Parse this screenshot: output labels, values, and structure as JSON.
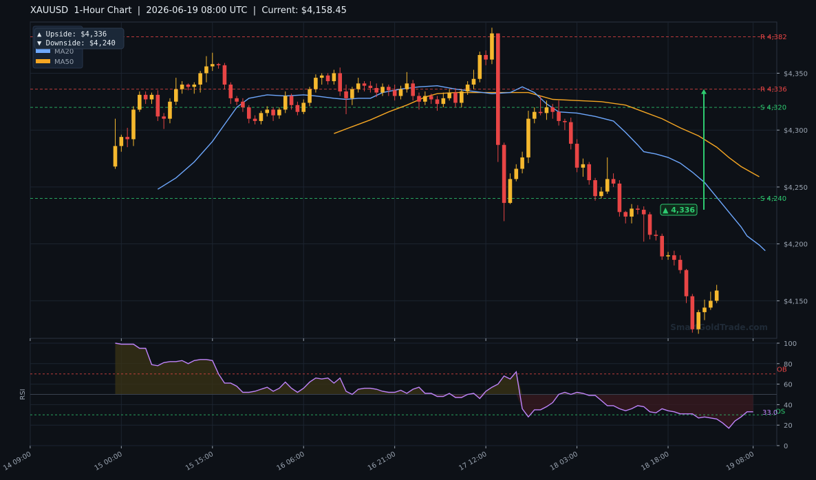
{
  "header": {
    "title": "XAUUSD  1-Hour Chart  |  2026-06-19 08:00 UTC  |  Current: $4,158.45"
  },
  "colors": {
    "bg": "#0d1117",
    "up": "#f5b82e",
    "down": "#e84545",
    "ma20": "#6ea8fe",
    "ma50": "#f5a623",
    "resistance": "#e84545",
    "support": "#2ecc71",
    "rsi": "#c084fc",
    "grid": "#1c2430"
  },
  "chart_data": [
    {
      "type": "candlestick",
      "title": "XAUUSD  1-Hour Chart  |  2026-06-19 08:00 UTC  |  Current: $4,158.45",
      "ylim": [
        4117,
        4395
      ],
      "y_ticks": [
        4150,
        4200,
        4250,
        4300,
        4350
      ],
      "y_tick_labels": [
        "$4,150",
        "$4,200",
        "$4,250",
        "$4,300",
        "$4,350"
      ],
      "x_ticks": [
        {
          "index": -14,
          "label": "14 09:00"
        },
        {
          "index": 1,
          "label": "15 00:00"
        },
        {
          "index": 16,
          "label": "15 15:00"
        },
        {
          "index": 31,
          "label": "16 06:00"
        },
        {
          "index": 46,
          "label": "16 21:00"
        },
        {
          "index": 61,
          "label": "17 12:00"
        },
        {
          "index": 76,
          "label": "18 03:00"
        },
        {
          "index": 91,
          "label": "18 18:00"
        },
        {
          "index": 105,
          "label": "19 08:00"
        }
      ],
      "candles": [
        [
          4268,
          4286,
          4266,
          4310
        ],
        [
          4286,
          4294,
          4281,
          4296
        ],
        [
          4294,
          4292,
          4285,
          4302
        ],
        [
          4292,
          4318,
          4286,
          4321
        ],
        [
          4318,
          4331,
          4316,
          4334
        ],
        [
          4331,
          4327,
          4323,
          4334
        ],
        [
          4327,
          4331,
          4323,
          4333
        ],
        [
          4331,
          4312,
          4308,
          4335
        ],
        [
          4312,
          4310,
          4301,
          4315
        ],
        [
          4310,
          4325,
          4306,
          4328
        ],
        [
          4325,
          4336,
          4322,
          4346
        ],
        [
          4336,
          4340,
          4332,
          4343
        ],
        [
          4340,
          4338,
          4335,
          4341
        ],
        [
          4338,
          4340,
          4332,
          4342
        ],
        [
          4340,
          4350,
          4333,
          4352
        ],
        [
          4350,
          4356,
          4342,
          4365
        ],
        [
          4356,
          4358,
          4352,
          4368
        ],
        [
          4358,
          4357,
          4354,
          4359
        ],
        [
          4357,
          4340,
          4336,
          4359
        ],
        [
          4340,
          4328,
          4323,
          4342
        ],
        [
          4328,
          4325,
          4322,
          4330
        ],
        [
          4325,
          4320,
          4316,
          4328
        ],
        [
          4320,
          4310,
          4306,
          4322
        ],
        [
          4310,
          4308,
          4305,
          4313
        ],
        [
          4308,
          4315,
          4305,
          4317
        ],
        [
          4315,
          4318,
          4312,
          4321
        ],
        [
          4318,
          4313,
          4308,
          4320
        ],
        [
          4313,
          4318,
          4310,
          4320
        ],
        [
          4318,
          4330,
          4315,
          4334
        ],
        [
          4330,
          4322,
          4318,
          4332
        ],
        [
          4322,
          4316,
          4313,
          4325
        ],
        [
          4316,
          4324,
          4314,
          4327
        ],
        [
          4324,
          4336,
          4321,
          4338
        ],
        [
          4336,
          4346,
          4333,
          4349
        ],
        [
          4346,
          4348,
          4340,
          4350
        ],
        [
          4348,
          4343,
          4340,
          4350
        ],
        [
          4343,
          4350,
          4340,
          4353
        ],
        [
          4350,
          4334,
          4330,
          4355
        ],
        [
          4334,
          4328,
          4314,
          4340
        ],
        [
          4328,
          4336,
          4322,
          4338
        ],
        [
          4336,
          4341,
          4333,
          4346
        ],
        [
          4341,
          4339,
          4334,
          4343
        ],
        [
          4339,
          4337,
          4333,
          4343
        ],
        [
          4337,
          4333,
          4329,
          4341
        ],
        [
          4333,
          4338,
          4330,
          4341
        ],
        [
          4338,
          4335,
          4330,
          4340
        ],
        [
          4335,
          4330,
          4326,
          4340
        ],
        [
          4330,
          4336,
          4327,
          4339
        ],
        [
          4336,
          4341,
          4333,
          4351
        ],
        [
          4341,
          4330,
          4326,
          4344
        ],
        [
          4330,
          4325,
          4318,
          4333
        ],
        [
          4325,
          4330,
          4322,
          4334
        ],
        [
          4330,
          4327,
          4323,
          4332
        ],
        [
          4327,
          4323,
          4317,
          4330
        ],
        [
          4323,
          4328,
          4320,
          4333
        ],
        [
          4328,
          4333,
          4326,
          4336
        ],
        [
          4333,
          4324,
          4320,
          4337
        ],
        [
          4324,
          4334,
          4320,
          4336
        ],
        [
          4334,
          4340,
          4331,
          4343
        ],
        [
          4340,
          4345,
          4336,
          4353
        ],
        [
          4345,
          4366,
          4342,
          4369
        ],
        [
          4366,
          4362,
          4357,
          4370
        ],
        [
          4362,
          4385,
          4358,
          4390
        ],
        [
          4385,
          4287,
          4272,
          4385
        ],
        [
          4287,
          4236,
          4220,
          4289
        ],
        [
          4236,
          4257,
          4235,
          4262
        ],
        [
          4257,
          4266,
          4255,
          4270
        ],
        [
          4266,
          4276,
          4262,
          4281
        ],
        [
          4276,
          4310,
          4271,
          4317
        ],
        [
          4310,
          4316,
          4306,
          4320
        ],
        [
          4316,
          4315,
          4313,
          4330
        ],
        [
          4315,
          4320,
          4309,
          4326
        ],
        [
          4320,
          4316,
          4310,
          4323
        ],
        [
          4316,
          4308,
          4304,
          4326
        ],
        [
          4308,
          4307,
          4300,
          4310
        ],
        [
          4307,
          4288,
          4283,
          4311
        ],
        [
          4288,
          4267,
          4263,
          4292
        ],
        [
          4267,
          4270,
          4259,
          4275
        ],
        [
          4270,
          4256,
          4252,
          4272
        ],
        [
          4256,
          4242,
          4238,
          4258
        ],
        [
          4242,
          4246,
          4240,
          4250
        ],
        [
          4246,
          4257,
          4244,
          4276
        ],
        [
          4257,
          4253,
          4250,
          4262
        ],
        [
          4253,
          4228,
          4224,
          4256
        ],
        [
          4228,
          4224,
          4218,
          4229
        ],
        [
          4224,
          4231,
          4218,
          4235
        ],
        [
          4231,
          4230,
          4226,
          4234
        ],
        [
          4230,
          4226,
          4202,
          4233
        ],
        [
          4226,
          4208,
          4204,
          4228
        ],
        [
          4208,
          4207,
          4203,
          4212
        ],
        [
          4207,
          4189,
          4186,
          4209
        ],
        [
          4189,
          4190,
          4186,
          4193
        ],
        [
          4190,
          4186,
          4181,
          4194
        ],
        [
          4186,
          4177,
          4174,
          4190
        ],
        [
          4177,
          4154,
          4148,
          4178
        ],
        [
          4154,
          4125,
          4122,
          4156
        ],
        [
          4125,
          4140,
          4121,
          4142
        ],
        [
          4140,
          4144,
          4133,
          4151
        ],
        [
          4144,
          4150,
          4142,
          4158
        ],
        [
          4150,
          4159,
          4148,
          4164
        ]
      ],
      "ma20": [
        [
          7,
          4248
        ],
        [
          10,
          4258
        ],
        [
          13,
          4272
        ],
        [
          16,
          4290
        ],
        [
          18,
          4305
        ],
        [
          20,
          4320
        ],
        [
          22,
          4328
        ],
        [
          25,
          4331
        ],
        [
          28,
          4330
        ],
        [
          31,
          4331
        ],
        [
          33,
          4330
        ],
        [
          36,
          4328
        ],
        [
          38,
          4327
        ],
        [
          40,
          4328
        ],
        [
          42,
          4328
        ],
        [
          44,
          4333
        ],
        [
          47,
          4336
        ],
        [
          50,
          4338
        ],
        [
          53,
          4339
        ],
        [
          56,
          4336
        ],
        [
          59,
          4334
        ],
        [
          62,
          4332
        ],
        [
          65,
          4333
        ],
        [
          67,
          4338
        ],
        [
          69,
          4333
        ],
        [
          71,
          4323
        ],
        [
          73,
          4316
        ],
        [
          76,
          4315
        ],
        [
          79,
          4312
        ],
        [
          82,
          4308
        ],
        [
          84,
          4298
        ],
        [
          86,
          4287
        ],
        [
          87,
          4281
        ],
        [
          89,
          4279
        ],
        [
          91,
          4276
        ],
        [
          93,
          4271
        ],
        [
          95,
          4263
        ],
        [
          97,
          4254
        ],
        [
          99,
          4241
        ],
        [
          101,
          4228
        ],
        [
          103,
          4215
        ],
        [
          104,
          4207
        ],
        [
          106,
          4199
        ],
        [
          107,
          4194
        ]
      ],
      "ma50": [
        [
          36,
          4297
        ],
        [
          39,
          4303
        ],
        [
          42,
          4309
        ],
        [
          45,
          4316
        ],
        [
          48,
          4322
        ],
        [
          51,
          4329
        ],
        [
          53,
          4332
        ],
        [
          56,
          4333
        ],
        [
          60,
          4333
        ],
        [
          63,
          4333
        ],
        [
          66,
          4333
        ],
        [
          68,
          4333
        ],
        [
          70,
          4330
        ],
        [
          72,
          4327
        ],
        [
          76,
          4326
        ],
        [
          80,
          4325
        ],
        [
          84,
          4322
        ],
        [
          87,
          4316
        ],
        [
          90,
          4310
        ],
        [
          93,
          4302
        ],
        [
          96,
          4295
        ],
        [
          99,
          4285
        ],
        [
          101,
          4276
        ],
        [
          103,
          4268
        ],
        [
          105,
          4262
        ],
        [
          106,
          4259
        ]
      ],
      "levels": [
        {
          "kind": "resistance",
          "value": 4382,
          "label": "R 4,382"
        },
        {
          "kind": "resistance",
          "value": 4336,
          "label": "R 4,336"
        },
        {
          "kind": "support",
          "value": 4320,
          "label": "S 4,320"
        },
        {
          "kind": "support",
          "value": 4240,
          "label": "S 4,240"
        }
      ],
      "legend": {
        "placement": "top-left",
        "lines": [
          "▲ Upside:   $4,336",
          "▼ Downside: $4,240"
        ],
        "series": [
          {
            "name": "MA20"
          },
          {
            "name": "MA50"
          }
        ]
      },
      "annotation": {
        "label": "▲ 4,336",
        "index": 97,
        "from": 4230,
        "to": 4336
      },
      "watermark": "SmartGoldTrade.com"
    },
    {
      "type": "line",
      "ylabel": "RSI",
      "ylim": [
        0,
        100
      ],
      "y_ticks": [
        0,
        20,
        40,
        60,
        80,
        100
      ],
      "baseline": 50,
      "overbought": {
        "value": 70,
        "label": "OB"
      },
      "oversold": {
        "value": 30,
        "label": "OS"
      },
      "current": {
        "value": 33.0,
        "label": "33.0"
      },
      "series": [
        {
          "values": [
            100,
            99,
            99,
            99,
            95,
            95,
            79,
            78,
            81,
            82,
            82,
            83,
            80,
            83,
            84,
            84,
            83,
            70,
            61,
            61,
            58,
            52,
            52,
            53,
            55,
            57,
            53,
            56,
            62,
            56,
            52,
            56,
            62,
            66,
            65,
            66,
            61,
            66,
            53,
            50,
            55,
            56,
            56,
            55,
            53,
            52,
            52,
            54,
            51,
            55,
            57,
            51,
            51,
            48,
            48,
            51,
            47,
            47,
            50,
            51,
            46,
            53,
            57,
            60,
            68,
            65,
            72,
            36,
            28,
            35,
            35,
            38,
            42,
            50,
            52,
            50,
            52,
            51,
            49,
            49,
            44,
            39,
            39,
            36,
            34,
            36,
            39,
            38,
            33,
            32,
            36,
            34,
            33,
            31,
            31,
            31,
            27,
            28,
            27,
            26,
            22,
            17,
            24,
            28,
            33,
            33
          ]
        }
      ]
    }
  ]
}
